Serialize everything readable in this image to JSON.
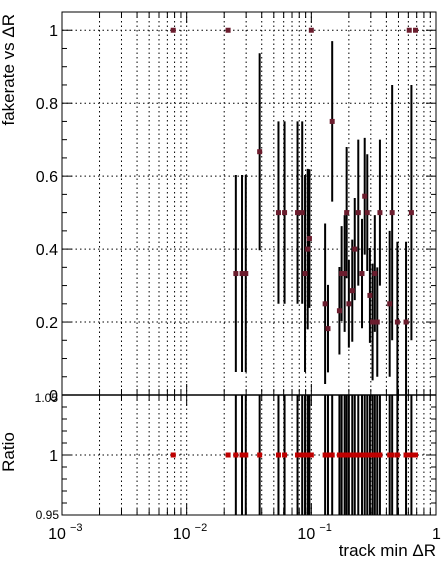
{
  "chart_data": [
    {
      "type": "scatter",
      "panel": "top",
      "ylabel": "fakerate vs ΔR",
      "xscale": "log",
      "xlim": [
        0.001,
        1.0
      ],
      "ylim": [
        0,
        1.05
      ],
      "yticks": [
        "0",
        "0.2",
        "0.4",
        "0.6",
        "0.8",
        "1"
      ],
      "grid": true,
      "series": [
        {
          "marker_color": "#6b1d2e",
          "points": [
            {
              "x": 0.0078,
              "y": 1.0,
              "yerr": 0.0
            },
            {
              "x": 0.0215,
              "y": 1.0,
              "yerr": 0.0
            },
            {
              "x": 0.0248,
              "y": 0.333,
              "yerr": 0.27
            },
            {
              "x": 0.0278,
              "y": 0.333,
              "yerr": 0.27
            },
            {
              "x": 0.0298,
              "y": 0.333,
              "yerr": 0.27
            },
            {
              "x": 0.0385,
              "y": 0.667,
              "yerr": 0.27
            },
            {
              "x": 0.0545,
              "y": 0.5,
              "yerr": 0.25
            },
            {
              "x": 0.061,
              "y": 0.5,
              "yerr": 0.25
            },
            {
              "x": 0.0775,
              "y": 0.5,
              "yerr": 0.25
            },
            {
              "x": 0.0845,
              "y": 0.5,
              "yerr": 0.25
            },
            {
              "x": 0.089,
              "y": 0.333,
              "yerr": 0.27
            },
            {
              "x": 0.0935,
              "y": 0.4,
              "yerr": 0.22
            },
            {
              "x": 0.0965,
              "y": 0.429,
              "yerr": 0.19
            },
            {
              "x": 0.1,
              "y": 1.0,
              "yerr": 0.0
            },
            {
              "x": 0.129,
              "y": 0.25,
              "yerr": 0.22
            },
            {
              "x": 0.136,
              "y": 0.182,
              "yerr": 0.12
            },
            {
              "x": 0.147,
              "y": 0.75,
              "yerr": 0.22
            },
            {
              "x": 0.168,
              "y": 0.231,
              "yerr": 0.12
            },
            {
              "x": 0.175,
              "y": 0.333,
              "yerr": 0.13
            },
            {
              "x": 0.185,
              "y": 0.333,
              "yerr": 0.16
            },
            {
              "x": 0.192,
              "y": 0.5,
              "yerr": 0.18
            },
            {
              "x": 0.2,
              "y": 0.25,
              "yerr": 0.12
            },
            {
              "x": 0.213,
              "y": 0.286,
              "yerr": 0.14
            },
            {
              "x": 0.223,
              "y": 0.4,
              "yerr": 0.14
            },
            {
              "x": 0.238,
              "y": 0.5,
              "yerr": 0.2
            },
            {
              "x": 0.255,
              "y": 0.333,
              "yerr": 0.15
            },
            {
              "x": 0.268,
              "y": 0.545,
              "yerr": 0.16
            },
            {
              "x": 0.281,
              "y": 0.5,
              "yerr": 0.16
            },
            {
              "x": 0.295,
              "y": 0.273,
              "yerr": 0.13
            },
            {
              "x": 0.31,
              "y": 0.2,
              "yerr": 0.16
            },
            {
              "x": 0.323,
              "y": 0.333,
              "yerr": 0.16
            },
            {
              "x": 0.338,
              "y": 0.2,
              "yerr": 0.15
            },
            {
              "x": 0.355,
              "y": 0.5,
              "yerr": 0.2
            },
            {
              "x": 0.425,
              "y": 0.25,
              "yerr": 0.2
            },
            {
              "x": 0.445,
              "y": 0.5,
              "yerr": 0.35
            },
            {
              "x": 0.49,
              "y": 0.2,
              "yerr": 0.22
            },
            {
              "x": 0.575,
              "y": 0.2,
              "yerr": 0.22
            },
            {
              "x": 0.61,
              "y": 1.0,
              "yerr": 0.0
            },
            {
              "x": 0.635,
              "y": 0.5,
              "yerr": 0.35
            },
            {
              "x": 0.685,
              "y": 1.0,
              "yerr": 0.0
            }
          ]
        }
      ]
    },
    {
      "type": "scatter",
      "panel": "bottom",
      "xlabel": "track min ΔR",
      "ylabel": "Ratio",
      "xscale": "log",
      "xlim": [
        0.001,
        1.0
      ],
      "ylim": [
        0.95,
        1.05
      ],
      "yticks": [
        "0.95",
        "1",
        "1.05"
      ],
      "xticks": [
        {
          "base": "10",
          "exp": "−3"
        },
        {
          "base": "10",
          "exp": "−2"
        },
        {
          "base": "10",
          "exp": "−1"
        },
        {
          "base": "1",
          "exp": ""
        }
      ],
      "grid": true,
      "ratio_value": 1.0
    }
  ]
}
